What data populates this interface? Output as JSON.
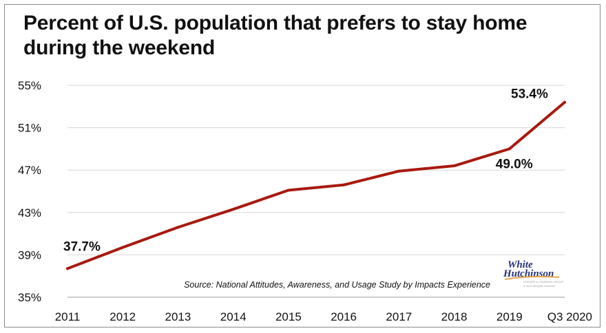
{
  "chart_data": {
    "type": "line",
    "title": "Percent of U.S. population that prefers to stay home during the weekend",
    "categories": [
      "2011",
      "2012",
      "2013",
      "2014",
      "2015",
      "2016",
      "2017",
      "2018",
      "2019",
      "Q3 2020"
    ],
    "series": [
      {
        "values": [
          37.7,
          39.7,
          41.6,
          43.3,
          45.1,
          45.6,
          46.9,
          47.4,
          49.0,
          53.4
        ]
      }
    ],
    "y_ticks": [
      "55%",
      "51%",
      "47%",
      "43%",
      "39%",
      "35%"
    ],
    "ylim": [
      35,
      55
    ],
    "y_tick_step": 4,
    "grid": "horizontal",
    "line_color": "#a8190f",
    "data_labels": [
      {
        "index": 0,
        "text": "37.7%"
      },
      {
        "index": 8,
        "text": "49.0%"
      },
      {
        "index": 9,
        "text": "53.4%"
      }
    ],
    "source": "Source: National Attitudes, Awareness, and Usage Study by Impacts Experience"
  },
  "logo": {
    "line1": "White",
    "line2": "Hutchinson",
    "tagline": "LEISURE & LEARNING GROUP",
    "rights": "© 2020 all rights reserved"
  }
}
